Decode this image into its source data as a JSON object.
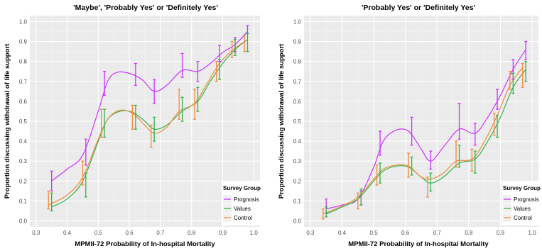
{
  "colors": {
    "panel_bg": "#ebebeb",
    "grid_major": "#ffffff",
    "grid_minor": "#f4f4f4",
    "prognosis": "#cc33ff",
    "values": "#33b24d",
    "control": "#f08c3c"
  },
  "legend": {
    "title": "Survey Group",
    "placement": "bottom-right"
  },
  "chart_data": [
    {
      "type": "line",
      "title": "'Maybe', 'Probably Yes' or 'Definitely Yes'",
      "xlabel": "MPMII-72 Probability of In-hospital Mortality",
      "ylabel": "Proportion discussing withdrawal of life support",
      "xlim": [
        0.28,
        1.02
      ],
      "ylim": [
        -0.03,
        1.03
      ],
      "x_ticks": [
        "0.3",
        "0.4",
        "0.5",
        "0.6",
        "0.7",
        "0.8",
        "0.9",
        "1.0"
      ],
      "y_ticks": [
        "0.0",
        "0.1",
        "0.2",
        "0.3",
        "0.4",
        "0.5",
        "0.6",
        "0.7",
        "0.8",
        "0.9",
        "1.0"
      ],
      "grid": true,
      "error_bars": true,
      "legend_position": "bottom-right",
      "series": [
        {
          "name": "Prognosis",
          "color": "#cc33ff",
          "x": [
            0.35,
            0.46,
            0.52,
            0.62,
            0.68,
            0.77,
            0.82,
            0.89,
            0.94,
            0.98
          ],
          "y": [
            0.2,
            0.34,
            0.68,
            0.73,
            0.65,
            0.78,
            0.75,
            0.84,
            0.88,
            0.96
          ],
          "lower": [
            0.15,
            0.28,
            0.63,
            0.68,
            0.59,
            0.72,
            0.7,
            0.8,
            0.85,
            0.94
          ],
          "upper": [
            0.25,
            0.41,
            0.75,
            0.79,
            0.71,
            0.84,
            0.8,
            0.88,
            0.92,
            0.98
          ],
          "curve": [
            [
              0.35,
              0.2
            ],
            [
              0.4,
              0.26
            ],
            [
              0.45,
              0.33
            ],
            [
              0.5,
              0.55
            ],
            [
              0.53,
              0.7
            ],
            [
              0.56,
              0.745
            ],
            [
              0.6,
              0.74
            ],
            [
              0.64,
              0.71
            ],
            [
              0.68,
              0.65
            ],
            [
              0.72,
              0.68
            ],
            [
              0.77,
              0.755
            ],
            [
              0.82,
              0.75
            ],
            [
              0.86,
              0.79
            ],
            [
              0.9,
              0.845
            ],
            [
              0.94,
              0.885
            ],
            [
              0.98,
              0.95
            ]
          ]
        },
        {
          "name": "Values",
          "color": "#33b24d",
          "x": [
            0.35,
            0.46,
            0.52,
            0.62,
            0.68,
            0.77,
            0.82,
            0.89,
            0.94,
            0.98
          ],
          "y": [
            0.09,
            0.18,
            0.49,
            0.52,
            0.46,
            0.56,
            0.61,
            0.76,
            0.87,
            0.89
          ],
          "lower": [
            0.05,
            0.12,
            0.42,
            0.46,
            0.4,
            0.5,
            0.55,
            0.71,
            0.83,
            0.85
          ],
          "upper": [
            0.14,
            0.24,
            0.56,
            0.58,
            0.52,
            0.62,
            0.67,
            0.81,
            0.91,
            0.94
          ],
          "curve": [
            [
              0.35,
              0.07
            ],
            [
              0.4,
              0.11
            ],
            [
              0.45,
              0.2
            ],
            [
              0.5,
              0.4
            ],
            [
              0.53,
              0.51
            ],
            [
              0.57,
              0.55
            ],
            [
              0.61,
              0.545
            ],
            [
              0.65,
              0.5
            ],
            [
              0.68,
              0.46
            ],
            [
              0.72,
              0.48
            ],
            [
              0.77,
              0.55
            ],
            [
              0.82,
              0.6
            ],
            [
              0.86,
              0.7
            ],
            [
              0.9,
              0.79
            ],
            [
              0.94,
              0.86
            ],
            [
              0.98,
              0.91
            ]
          ]
        },
        {
          "name": "Control",
          "color": "#f08c3c",
          "x": [
            0.34,
            0.45,
            0.51,
            0.61,
            0.67,
            0.76,
            0.81,
            0.88,
            0.93,
            0.97
          ],
          "y": [
            0.1,
            0.24,
            0.49,
            0.52,
            0.43,
            0.58,
            0.59,
            0.75,
            0.86,
            0.89
          ],
          "lower": [
            0.06,
            0.18,
            0.42,
            0.46,
            0.37,
            0.51,
            0.51,
            0.7,
            0.82,
            0.85
          ],
          "upper": [
            0.15,
            0.3,
            0.56,
            0.58,
            0.48,
            0.66,
            0.66,
            0.8,
            0.9,
            0.93
          ],
          "curve": [
            [
              0.34,
              0.08
            ],
            [
              0.4,
              0.13
            ],
            [
              0.45,
              0.22
            ],
            [
              0.5,
              0.41
            ],
            [
              0.53,
              0.51
            ],
            [
              0.57,
              0.555
            ],
            [
              0.61,
              0.54
            ],
            [
              0.65,
              0.48
            ],
            [
              0.68,
              0.44
            ],
            [
              0.72,
              0.47
            ],
            [
              0.76,
              0.55
            ],
            [
              0.81,
              0.59
            ],
            [
              0.85,
              0.69
            ],
            [
              0.89,
              0.79
            ],
            [
              0.93,
              0.855
            ],
            [
              0.97,
              0.9
            ]
          ]
        }
      ]
    },
    {
      "type": "line",
      "title": "'Probably Yes' or 'Definitely Yes'",
      "xlabel": "MPMII-72 Probability of In-hospital Mortality",
      "ylabel": "Proportion discussing withdrawal of life support",
      "xlim": [
        0.28,
        1.02
      ],
      "ylim": [
        -0.03,
        1.03
      ],
      "x_ticks": [
        "0.3",
        "0.4",
        "0.5",
        "0.6",
        "0.7",
        "0.8",
        "0.9",
        "1.0"
      ],
      "y_ticks": [
        "0.0",
        "0.1",
        "0.2",
        "0.3",
        "0.4",
        "0.5",
        "0.6",
        "0.7",
        "0.8",
        "0.9",
        "1.0"
      ],
      "grid": true,
      "error_bars": true,
      "legend_position": "bottom-right",
      "series": [
        {
          "name": "Prognosis",
          "color": "#cc33ff",
          "x": [
            0.35,
            0.46,
            0.52,
            0.62,
            0.68,
            0.77,
            0.82,
            0.89,
            0.94,
            0.98
          ],
          "y": [
            0.07,
            0.11,
            0.39,
            0.45,
            0.3,
            0.47,
            0.44,
            0.62,
            0.76,
            0.86
          ],
          "lower": [
            0.04,
            0.08,
            0.33,
            0.38,
            0.26,
            0.41,
            0.38,
            0.56,
            0.71,
            0.81
          ],
          "upper": [
            0.11,
            0.15,
            0.45,
            0.52,
            0.35,
            0.59,
            0.49,
            0.66,
            0.81,
            0.9
          ],
          "curve": [
            [
              0.35,
              0.06
            ],
            [
              0.4,
              0.08
            ],
            [
              0.45,
              0.11
            ],
            [
              0.5,
              0.27
            ],
            [
              0.53,
              0.4
            ],
            [
              0.57,
              0.455
            ],
            [
              0.61,
              0.45
            ],
            [
              0.65,
              0.36
            ],
            [
              0.68,
              0.3
            ],
            [
              0.72,
              0.37
            ],
            [
              0.77,
              0.46
            ],
            [
              0.82,
              0.44
            ],
            [
              0.86,
              0.52
            ],
            [
              0.9,
              0.63
            ],
            [
              0.94,
              0.76
            ],
            [
              0.98,
              0.86
            ]
          ]
        },
        {
          "name": "Values",
          "color": "#33b24d",
          "x": [
            0.35,
            0.46,
            0.52,
            0.62,
            0.68,
            0.77,
            0.82,
            0.89,
            0.94,
            0.98
          ],
          "y": [
            0.04,
            0.12,
            0.24,
            0.27,
            0.19,
            0.32,
            0.29,
            0.47,
            0.69,
            0.75
          ],
          "lower": [
            0.02,
            0.08,
            0.19,
            0.23,
            0.15,
            0.27,
            0.24,
            0.42,
            0.64,
            0.7
          ],
          "upper": [
            0.07,
            0.16,
            0.29,
            0.32,
            0.24,
            0.38,
            0.35,
            0.53,
            0.74,
            0.8
          ],
          "curve": [
            [
              0.35,
              0.035
            ],
            [
              0.4,
              0.07
            ],
            [
              0.45,
              0.11
            ],
            [
              0.5,
              0.2
            ],
            [
              0.53,
              0.25
            ],
            [
              0.57,
              0.275
            ],
            [
              0.61,
              0.27
            ],
            [
              0.65,
              0.22
            ],
            [
              0.68,
              0.19
            ],
            [
              0.72,
              0.22
            ],
            [
              0.77,
              0.29
            ],
            [
              0.82,
              0.31
            ],
            [
              0.86,
              0.4
            ],
            [
              0.9,
              0.52
            ],
            [
              0.94,
              0.67
            ],
            [
              0.98,
              0.76
            ]
          ]
        },
        {
          "name": "Control",
          "color": "#f08c3c",
          "x": [
            0.34,
            0.45,
            0.51,
            0.61,
            0.67,
            0.76,
            0.81,
            0.88,
            0.93,
            0.97
          ],
          "y": [
            0.03,
            0.1,
            0.23,
            0.28,
            0.17,
            0.33,
            0.3,
            0.48,
            0.7,
            0.73
          ],
          "lower": [
            0.01,
            0.06,
            0.18,
            0.22,
            0.12,
            0.27,
            0.25,
            0.43,
            0.66,
            0.67
          ],
          "upper": [
            0.06,
            0.14,
            0.28,
            0.34,
            0.22,
            0.4,
            0.36,
            0.54,
            0.75,
            0.79
          ],
          "curve": [
            [
              0.34,
              0.035
            ],
            [
              0.4,
              0.075
            ],
            [
              0.45,
              0.12
            ],
            [
              0.5,
              0.21
            ],
            [
              0.53,
              0.26
            ],
            [
              0.57,
              0.28
            ],
            [
              0.61,
              0.275
            ],
            [
              0.65,
              0.22
            ],
            [
              0.68,
              0.21
            ],
            [
              0.72,
              0.24
            ],
            [
              0.76,
              0.3
            ],
            [
              0.81,
              0.31
            ],
            [
              0.85,
              0.4
            ],
            [
              0.89,
              0.53
            ],
            [
              0.93,
              0.68
            ],
            [
              0.97,
              0.77
            ]
          ]
        }
      ]
    }
  ]
}
